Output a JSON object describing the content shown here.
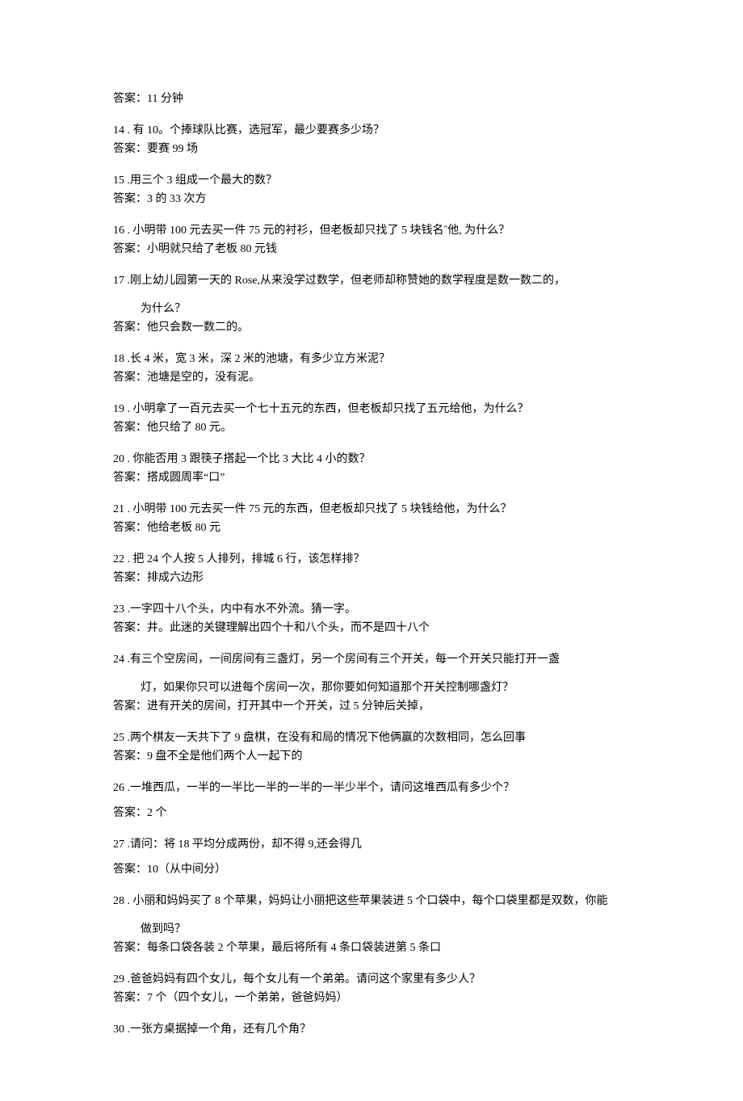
{
  "items": [
    {
      "type": "answer_only",
      "answer": "答案：11 分钟"
    },
    {
      "type": "qa",
      "q": "14 . 有 10。个捧球队比赛，选冠军，最少要赛多少场？",
      "a": "答案：要赛 99 场"
    },
    {
      "type": "qa",
      "q": "15 .用三个 3 组成一个最大的数？",
      "a": "答案：3 的 33 次方"
    },
    {
      "type": "qa",
      "q": "16 . 小明带 100 元去买一件 75 元的衬衫，但老板却只找了 5 块钱名ˆ他, 为什么？",
      "a": "答案：小明就只给了老板 80 元钱"
    },
    {
      "type": "q_sub_a",
      "q": "17 .刚上幼儿园第一天的 Rose,从来没学过数学，但老师却称赞她的数学程度是数一数二的，",
      "sub": "为什么？",
      "a": "答案：他只会数一数二的。"
    },
    {
      "type": "qa",
      "q": "18 .长 4 米，宽 3 米，深 2 米的池塘，有多少立方米泥？",
      "a": "答案：池塘是空的，没有泥。"
    },
    {
      "type": "qa",
      "q": "19 . 小明拿了一百元去买一个七十五元的东西，但老板却只找了五元给他，为什么？",
      "a": "答案：他只给了 80 元。"
    },
    {
      "type": "qa",
      "q": "20 . 你能否用 3 跟筷子搭起一个比 3 大比 4 小的数？",
      "a": "答案：搭成圆周率“口”"
    },
    {
      "type": "qa",
      "q": "21 . 小明带 100 元去买一件 75 元的东西，但老板却只找了 5 块钱给他，为什么？",
      "a": "答案：他给老板 80 元"
    },
    {
      "type": "qa",
      "q": "22 . 把 24 个人按 5 人排列，排城 6 行，该怎样排？",
      "a": "答案：排成六边形"
    },
    {
      "type": "qa",
      "q": "23 .一字四十八个头，内中有水不外流。猜一字。",
      "a": "答案：井。此迷的关键理解出四个十和八个头，而不是四十八个"
    },
    {
      "type": "q_sub_a",
      "q": "24 .有三个空房间，一间房间有三盏灯，另一个房间有三个开关，每一个开关只能打开一盏",
      "sub": "灯，如果你只可以进每个房间一次，那你要如何知道那个开关控制哪盏灯？",
      "a": "答案：进有开关的房间，打开其中一个开关，过 5 分钟后关掉，"
    },
    {
      "type": "qa",
      "q": "25 .两个棋友一天共下了 9 盘棋，在没有和局的情况下他俩赢的次数相同，怎么回事",
      "a": "答案：9 盘不全是他们两个人一起下的"
    },
    {
      "type": "qa_gap",
      "q": "26 .一堆西瓜，一半的一半比一半的一半的一半少半个，请问这堆西瓜有多少个？",
      "a": "答案：2 个"
    },
    {
      "type": "qa_gap",
      "q": "27 .请问：将 18 平均分成两份，却不得 9,还会得几",
      "a": "答案：10（从中间分）"
    },
    {
      "type": "q_sub_a",
      "q": "28 . 小丽和妈妈买了 8 个苹果，妈妈让小丽把这些苹果装进 5 个口袋中，每个口袋里都是双数，你能",
      "sub": "做到吗？",
      "a": "答案：每条口袋各装 2 个苹果，最后将所有 4 条口袋装进第 5 条口"
    },
    {
      "type": "qa",
      "q": "29 .爸爸妈妈有四个女儿，每个女儿有一个弟弟。请问这个家里有多少人？",
      "a": "答案：7 个（四个女儿，一个弟弟，爸爸妈妈）"
    },
    {
      "type": "q_only",
      "q": "30 .一张方桌据掉一个角，还有几个角？"
    }
  ]
}
